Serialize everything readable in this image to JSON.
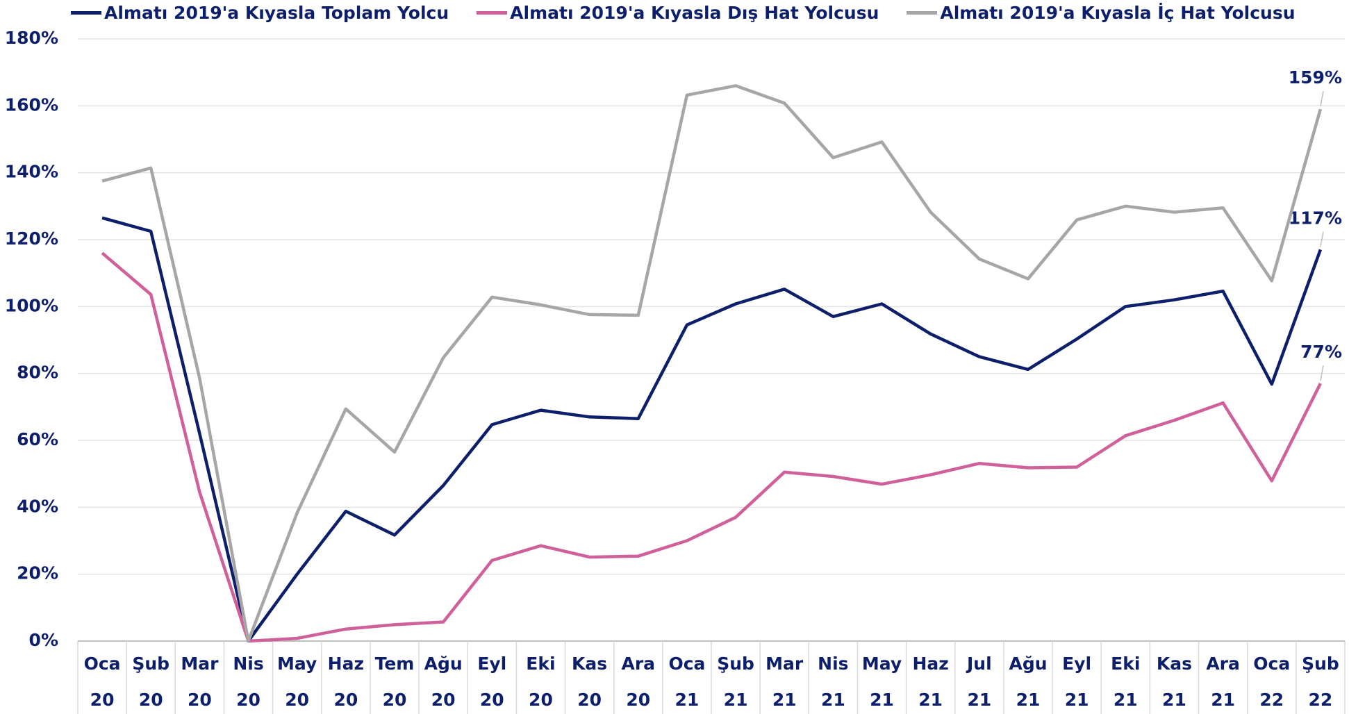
{
  "chart_data": {
    "type": "line",
    "categories": [
      "Oca 20",
      "Şub 20",
      "Mar 20",
      "Nis 20",
      "May 20",
      "Haz 20",
      "Tem 20",
      "Ağu 20",
      "Eyl 20",
      "Eki 20",
      "Kas 20",
      "Ara 20",
      "Oca 21",
      "Şub 21",
      "Mar 21",
      "Nis 21",
      "May 21",
      "Haz 21",
      "Jul 21",
      "Ağu 21",
      "Eyl 21",
      "Eki 21",
      "Kas 21",
      "Ara 21",
      "Oca 22",
      "Şub 22"
    ],
    "series": [
      {
        "name": "Almatı 2019'a Kıyasla Toplam Yolcu",
        "color": "#0d1f6b",
        "values": [
          126.5,
          122.5,
          62,
          0,
          20,
          38.8,
          31.7,
          46.5,
          64.7,
          69,
          67,
          66.5,
          94.5,
          100.8,
          105.2,
          97,
          100.8,
          91.8,
          85,
          81.2,
          90.3,
          100,
          102,
          104.6,
          76.8,
          117
        ],
        "value_labels": [
          null,
          null,
          null,
          null,
          null,
          null,
          null,
          null,
          null,
          null,
          null,
          null,
          null,
          null,
          null,
          null,
          null,
          null,
          null,
          null,
          null,
          null,
          null,
          null,
          null,
          "117%"
        ]
      },
      {
        "name": "Almatı 2019'a Kıyasla Dış Hat Yolcusu",
        "color": "#d0609a",
        "values": [
          116,
          103.6,
          44.5,
          0,
          0.8,
          3.6,
          4.9,
          5.7,
          24.1,
          28.5,
          25.1,
          25.4,
          30,
          37,
          50.5,
          49.2,
          46.9,
          49.7,
          53.1,
          51.8,
          52,
          61.4,
          66,
          71.2,
          47.9,
          77
        ],
        "value_labels": [
          null,
          null,
          null,
          null,
          null,
          null,
          null,
          null,
          null,
          null,
          null,
          null,
          null,
          null,
          null,
          null,
          null,
          null,
          null,
          null,
          null,
          null,
          null,
          null,
          null,
          "77%"
        ]
      },
      {
        "name": "Almatı 2019'a Kıyasla İç Hat Yolcusu",
        "color": "#a6a6a6",
        "values": [
          137.5,
          141.4,
          78.5,
          0,
          38.3,
          69.4,
          56.5,
          84.7,
          102.8,
          100.5,
          97.6,
          97.4,
          163.2,
          166,
          160.8,
          144.5,
          149.2,
          128.2,
          114.2,
          108.3,
          125.9,
          130,
          128.2,
          129.5,
          107.7,
          159
        ],
        "value_labels": [
          null,
          null,
          null,
          null,
          null,
          null,
          null,
          null,
          null,
          null,
          null,
          null,
          null,
          null,
          null,
          null,
          null,
          null,
          null,
          null,
          null,
          null,
          null,
          null,
          null,
          "159%"
        ]
      }
    ],
    "ylim": [
      0,
      180
    ],
    "yticks": [
      {
        "value": 0,
        "label": "0%"
      },
      {
        "value": 20,
        "label": "20%"
      },
      {
        "value": 40,
        "label": "40%"
      },
      {
        "value": 60,
        "label": "60%"
      },
      {
        "value": 80,
        "label": "80%"
      },
      {
        "value": 100,
        "label": "100%"
      },
      {
        "value": 120,
        "label": "120%"
      },
      {
        "value": 140,
        "label": "140%"
      },
      {
        "value": 160,
        "label": "160%"
      },
      {
        "value": 180,
        "label": "180%"
      }
    ],
    "grid": true,
    "legend": "top"
  }
}
